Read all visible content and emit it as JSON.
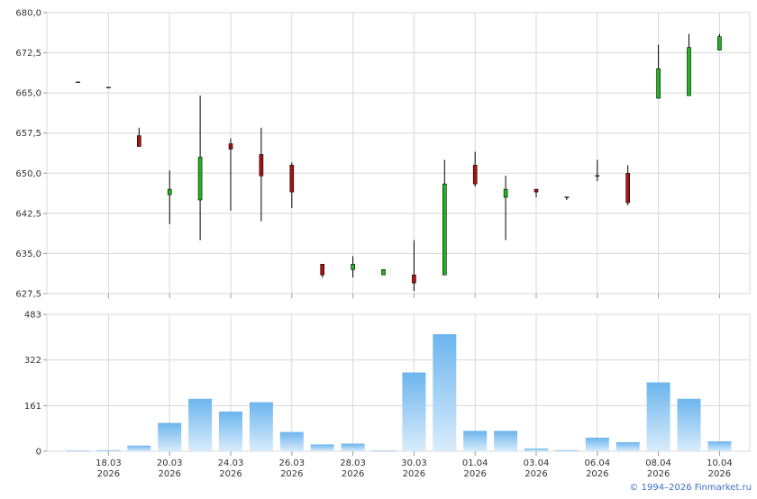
{
  "colors": {
    "up": "#22b422",
    "down": "#aa1111",
    "grid": "#d8d8d8",
    "axis": "#999999",
    "volume_top": "#6cb5ee",
    "volume_bottom": "#d9ecfb",
    "text": "#333333",
    "link": "#3a6ec8"
  },
  "copyright": "© 1994–2026 Finmarket.ru",
  "chart_data": [
    {
      "type": "candlestick",
      "title": "",
      "ylim": [
        627.5,
        680.0
      ],
      "y_ticks": [
        "680,0",
        "672,5",
        "665,0",
        "657,5",
        "650,0",
        "642,5",
        "635,0",
        "627,5"
      ],
      "y_tick_values": [
        680.0,
        672.5,
        665.0,
        657.5,
        650.0,
        642.5,
        635.0,
        627.5
      ],
      "x_ticks": [
        {
          "day": 2,
          "date": "18.03",
          "year": "2026"
        },
        {
          "day": 4,
          "date": "20.03",
          "year": "2026"
        },
        {
          "day": 6,
          "date": "24.03",
          "year": "2026"
        },
        {
          "day": 8,
          "date": "26.03",
          "year": "2026"
        },
        {
          "day": 10,
          "date": "28.03",
          "year": "2026"
        },
        {
          "day": 12,
          "date": "30.03",
          "year": "2026"
        },
        {
          "day": 14,
          "date": "01.04",
          "year": "2026"
        },
        {
          "day": 16,
          "date": "03.04",
          "year": "2026"
        },
        {
          "day": 18,
          "date": "06.04",
          "year": "2026"
        },
        {
          "day": 20,
          "date": "08.04",
          "year": "2026"
        },
        {
          "day": 22,
          "date": "10.04",
          "year": "2026"
        }
      ],
      "grid": true,
      "candles": [
        {
          "day": 1,
          "open": 667.0,
          "high": 667.0,
          "low": 667.0,
          "close": 667.0
        },
        {
          "day": 2,
          "open": 666.0,
          "high": 666.0,
          "low": 666.0,
          "close": 666.0
        },
        {
          "day": 3,
          "open": 657.0,
          "high": 658.5,
          "low": 655.0,
          "close": 655.0
        },
        {
          "day": 4,
          "open": 646.0,
          "high": 650.5,
          "low": 640.5,
          "close": 647.0
        },
        {
          "day": 5,
          "open": 645.0,
          "high": 664.5,
          "low": 637.5,
          "close": 653.0
        },
        {
          "day": 6,
          "open": 655.5,
          "high": 656.5,
          "low": 643.0,
          "close": 654.5
        },
        {
          "day": 7,
          "open": 653.5,
          "high": 658.5,
          "low": 641.0,
          "close": 649.5
        },
        {
          "day": 8,
          "open": 651.5,
          "high": 652.0,
          "low": 643.5,
          "close": 646.5
        },
        {
          "day": 9,
          "open": 633.0,
          "high": 633.0,
          "low": 630.5,
          "close": 631.0
        },
        {
          "day": 10,
          "open": 632.0,
          "high": 634.5,
          "low": 630.5,
          "close": 633.0
        },
        {
          "day": 11,
          "open": 631.0,
          "high": 632.0,
          "low": 631.0,
          "close": 632.0
        },
        {
          "day": 12,
          "open": 631.0,
          "high": 637.5,
          "low": 628.0,
          "close": 629.5
        },
        {
          "day": 13,
          "open": 631.0,
          "high": 652.5,
          "low": 631.0,
          "close": 648.0
        },
        {
          "day": 14,
          "open": 651.5,
          "high": 654.0,
          "low": 647.5,
          "close": 648.0
        },
        {
          "day": 15,
          "open": 645.5,
          "high": 649.5,
          "low": 637.5,
          "close": 647.0
        },
        {
          "day": 16,
          "open": 647.0,
          "high": 647.0,
          "low": 645.5,
          "close": 646.5
        },
        {
          "day": 17,
          "open": 645.5,
          "high": 645.5,
          "low": 645.0,
          "close": 645.5
        },
        {
          "day": 18,
          "open": 649.5,
          "high": 652.5,
          "low": 648.5,
          "close": 649.5
        },
        {
          "day": 19,
          "open": 650.0,
          "high": 651.5,
          "low": 644.0,
          "close": 644.5
        },
        {
          "day": 20,
          "open": 664.0,
          "high": 674.0,
          "low": 664.0,
          "close": 669.5
        },
        {
          "day": 21,
          "open": 664.5,
          "high": 676.0,
          "low": 664.5,
          "close": 673.5
        },
        {
          "day": 22,
          "open": 673.0,
          "high": 676.0,
          "low": 673.0,
          "close": 675.5
        }
      ]
    },
    {
      "type": "bar",
      "title": "",
      "ylim": [
        0,
        483
      ],
      "y_ticks": [
        "483",
        "322",
        "161",
        "0"
      ],
      "y_tick_values": [
        483,
        322,
        161,
        0
      ],
      "grid": true,
      "days": [
        1,
        2,
        3,
        4,
        5,
        6,
        7,
        8,
        9,
        10,
        11,
        12,
        13,
        14,
        15,
        16,
        17,
        18,
        19,
        20,
        21,
        22
      ],
      "values": [
        3,
        4,
        20,
        100,
        185,
        140,
        173,
        68,
        24,
        27,
        3,
        278,
        413,
        72,
        72,
        10,
        4,
        48,
        32,
        243,
        185,
        35
      ]
    }
  ]
}
